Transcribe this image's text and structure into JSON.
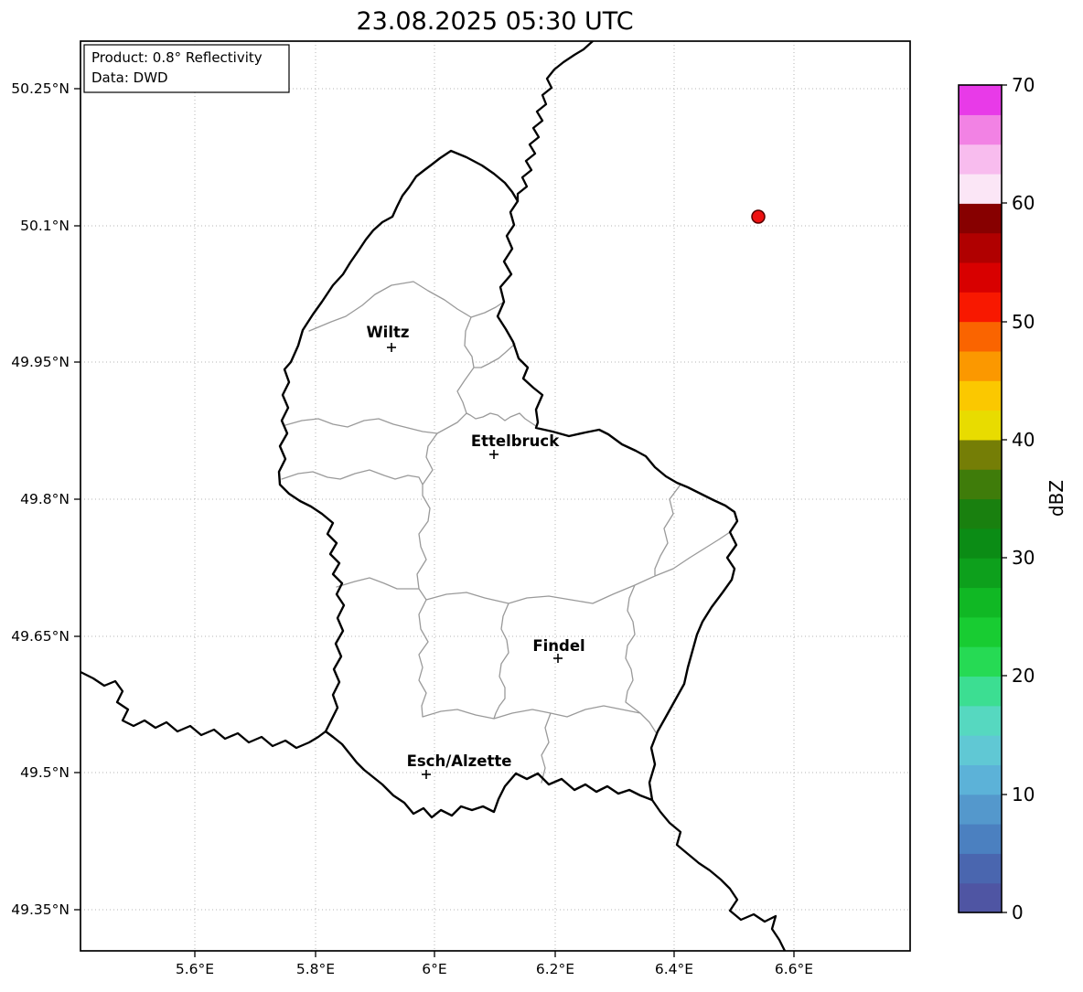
{
  "title": "23.08.2025 05:30 UTC",
  "info_box": {
    "product": "Product: 0.8° Reflectivity",
    "data": "Data: DWD"
  },
  "axes": {
    "y_ticks": [
      "50.25°N",
      "50.1°N",
      "49.95°N",
      "49.8°N",
      "49.65°N",
      "49.5°N",
      "49.35°N"
    ],
    "x_ticks": [
      "5.6°E",
      "5.8°E",
      "6°E",
      "6.2°E",
      "6.4°E",
      "6.6°E"
    ]
  },
  "cities": [
    {
      "name": "Wiltz"
    },
    {
      "name": "Ettelbruck"
    },
    {
      "name": "Findel"
    },
    {
      "name": "Esch/Alzette"
    }
  ],
  "radar": {
    "color": "#ee1111",
    "edge_color": "#550000"
  },
  "map": {
    "country_border_color": "#000000",
    "canton_border_color": "#9a9a9a",
    "grid_color": "#b5b5b5"
  },
  "colorbar": {
    "label": "dBZ",
    "unit": "dBZ",
    "min": 0,
    "max": 70,
    "step": 2.5,
    "tick_labels": [
      "70",
      "60",
      "50",
      "40",
      "30",
      "20",
      "10",
      "0"
    ],
    "colors_bottom_to_top": [
      "#4f55a3",
      "#4a66af",
      "#4b80c0",
      "#5498cc",
      "#5cb2d8",
      "#60c8d4",
      "#56d8c0",
      "#3cde92",
      "#26da54",
      "#18cc32",
      "#10b824",
      "#0da01c",
      "#0b8c15",
      "#19800f",
      "#3f7c0a",
      "#757e06",
      "#e8dc00",
      "#fbc800",
      "#fb9800",
      "#fa6400",
      "#f81800",
      "#d80000",
      "#b00000",
      "#870000",
      "#fbe6f6",
      "#f8bcee",
      "#f282e4",
      "#e83ae8"
    ]
  }
}
